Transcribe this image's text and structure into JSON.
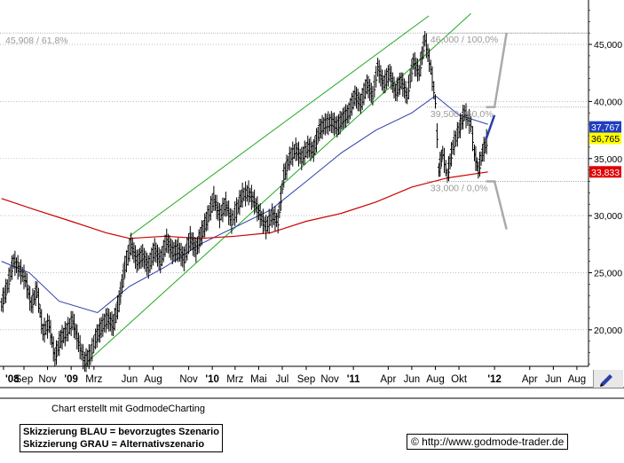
{
  "chart_data": {
    "type": "candlestick",
    "y_axis": {
      "ticks": [
        20000,
        25000,
        30000,
        35000,
        40000,
        45000
      ],
      "tick_labels": [
        "20,000",
        "25,000",
        "30,000",
        "35,000",
        "40,000",
        "45,000"
      ],
      "range": [
        16800,
        48500
      ],
      "position": "right"
    },
    "x_axis": {
      "tick_labels": [
        "'08",
        "Sep",
        "Nov",
        "'09",
        "Mrz",
        "Jun",
        "Aug",
        "Nov",
        "'10",
        "Mrz",
        "Mai",
        "Jul",
        "Sep",
        "Nov",
        "'11",
        "Apr",
        "Jun",
        "Aug",
        "Okt",
        "'12",
        "Apr",
        "Jun",
        "Aug"
      ],
      "bold_labels": [
        "'08",
        "'09",
        "'10",
        "'11",
        "'12"
      ],
      "range": [
        "2008-07-01",
        "2012-08-31"
      ]
    },
    "grid": "horizontal dotted",
    "price_series": [
      [
        "2008-07-05",
        22200
      ],
      [
        "2008-07-20",
        23800
      ],
      [
        "2008-08-05",
        26000
      ],
      [
        "2008-08-20",
        25300
      ],
      [
        "2008-09-05",
        24400
      ],
      [
        "2008-09-20",
        22200
      ],
      [
        "2008-10-05",
        23500
      ],
      [
        "2008-10-20",
        19800
      ],
      [
        "2008-11-05",
        20500
      ],
      [
        "2008-11-20",
        17600
      ],
      [
        "2008-12-05",
        19200
      ],
      [
        "2008-12-20",
        19800
      ],
      [
        "2009-01-05",
        20800
      ],
      [
        "2009-01-20",
        18900
      ],
      [
        "2009-02-05",
        17200
      ],
      [
        "2009-02-20",
        17800
      ],
      [
        "2009-03-05",
        19200
      ],
      [
        "2009-03-20",
        20200
      ],
      [
        "2009-04-05",
        21000
      ],
      [
        "2009-04-20",
        20400
      ],
      [
        "2009-05-05",
        22500
      ],
      [
        "2009-05-20",
        25500
      ],
      [
        "2009-06-05",
        27500
      ],
      [
        "2009-06-20",
        26000
      ],
      [
        "2009-07-05",
        26500
      ],
      [
        "2009-07-20",
        25500
      ],
      [
        "2009-08-05",
        27000
      ],
      [
        "2009-08-20",
        26000
      ],
      [
        "2009-09-05",
        27800
      ],
      [
        "2009-09-20",
        26800
      ],
      [
        "2009-10-05",
        27000
      ],
      [
        "2009-10-20",
        26200
      ],
      [
        "2009-11-05",
        28000
      ],
      [
        "2009-11-20",
        27000
      ],
      [
        "2009-12-05",
        28500
      ],
      [
        "2009-12-20",
        29800
      ],
      [
        "2010-01-05",
        31500
      ],
      [
        "2010-01-20",
        30000
      ],
      [
        "2010-02-05",
        31000
      ],
      [
        "2010-02-20",
        29500
      ],
      [
        "2010-03-05",
        30500
      ],
      [
        "2010-03-20",
        31800
      ],
      [
        "2010-04-05",
        32000
      ],
      [
        "2010-04-20",
        31200
      ],
      [
        "2010-05-05",
        30000
      ],
      [
        "2010-05-20",
        29000
      ],
      [
        "2010-06-05",
        30000
      ],
      [
        "2010-06-20",
        29500
      ],
      [
        "2010-07-05",
        33500
      ],
      [
        "2010-07-20",
        35000
      ],
      [
        "2010-08-05",
        35800
      ],
      [
        "2010-08-20",
        35000
      ],
      [
        "2010-09-05",
        36000
      ],
      [
        "2010-09-20",
        35700
      ],
      [
        "2010-10-05",
        37500
      ],
      [
        "2010-10-20",
        38000
      ],
      [
        "2010-11-05",
        38200
      ],
      [
        "2010-11-20",
        37800
      ],
      [
        "2010-12-05",
        38500
      ],
      [
        "2010-12-20",
        39000
      ],
      [
        "2011-01-05",
        40500
      ],
      [
        "2011-01-20",
        39800
      ],
      [
        "2011-02-05",
        41500
      ],
      [
        "2011-02-20",
        40500
      ],
      [
        "2011-03-05",
        43000
      ],
      [
        "2011-03-20",
        41500
      ],
      [
        "2011-04-05",
        42500
      ],
      [
        "2011-04-20",
        40800
      ],
      [
        "2011-05-05",
        41800
      ],
      [
        "2011-05-20",
        40500
      ],
      [
        "2011-06-05",
        43500
      ],
      [
        "2011-06-20",
        42500
      ],
      [
        "2011-07-05",
        45500
      ],
      [
        "2011-07-20",
        43000
      ],
      [
        "2011-08-01",
        40000
      ],
      [
        "2011-08-10",
        34000
      ],
      [
        "2011-08-20",
        35500
      ],
      [
        "2011-09-01",
        33500
      ],
      [
        "2011-09-15",
        36000
      ],
      [
        "2011-10-01",
        37500
      ],
      [
        "2011-10-15",
        39000
      ],
      [
        "2011-11-01",
        38000
      ],
      [
        "2011-11-10",
        35500
      ],
      [
        "2011-11-20",
        34000
      ],
      [
        "2011-12-01",
        35500
      ],
      [
        "2011-12-15",
        36800
      ]
    ],
    "moving_average_blue": [
      [
        "2008-07-05",
        26000
      ],
      [
        "2008-09-15",
        25000
      ],
      [
        "2008-12-01",
        22500
      ],
      [
        "2009-03-10",
        21500
      ],
      [
        "2009-06-01",
        23800
      ],
      [
        "2009-09-01",
        25500
      ],
      [
        "2009-12-01",
        27500
      ],
      [
        "2010-03-01",
        29000
      ],
      [
        "2010-06-01",
        30500
      ],
      [
        "2010-09-01",
        33000
      ],
      [
        "2010-12-01",
        35500
      ],
      [
        "2011-03-01",
        37500
      ],
      [
        "2011-06-01",
        39000
      ],
      [
        "2011-08-01",
        40500
      ],
      [
        "2011-10-01",
        38800
      ],
      [
        "2011-12-15",
        38000
      ]
    ],
    "moving_average_red": [
      [
        "2008-07-05",
        31500
      ],
      [
        "2008-10-01",
        30500
      ],
      [
        "2009-01-01",
        29500
      ],
      [
        "2009-04-01",
        28500
      ],
      [
        "2009-06-01",
        28000
      ],
      [
        "2009-09-01",
        28200
      ],
      [
        "2009-12-01",
        28000
      ],
      [
        "2010-03-01",
        28200
      ],
      [
        "2010-06-01",
        28500
      ],
      [
        "2010-09-01",
        29500
      ],
      [
        "2010-12-01",
        30200
      ],
      [
        "2011-03-01",
        31200
      ],
      [
        "2011-06-01",
        32500
      ],
      [
        "2011-09-01",
        33300
      ],
      [
        "2011-12-15",
        33833
      ]
    ],
    "trend_channel_lines": [
      {
        "from": [
          "2009-06-01",
          28200
        ],
        "to": [
          "2011-07-15",
          47500
        ]
      },
      {
        "from": [
          "2009-02-15",
          17300
        ],
        "to": [
          "2011-11-01",
          47700
        ]
      }
    ],
    "fibonacci_levels": [
      {
        "label": "46,000 / 100,0%",
        "value": 46000
      },
      {
        "label": "39,500 / 50,0%",
        "value": 39500
      },
      {
        "label": "33,000 / 0,0%",
        "value": 33000
      }
    ],
    "left_level_label": "45,908 / 61,8%",
    "scenario_blue": [
      [
        "2011-12-10",
        36700
      ],
      [
        "2012-01-01",
        38800
      ]
    ],
    "scenario_gray": [
      [
        [
          "2011-12-10",
          39500
        ],
        [
          "2012-01-01",
          39500
        ],
        [
          "2012-02-01",
          46000
        ]
      ],
      [
        [
          "2011-12-10",
          33000
        ],
        [
          "2012-01-01",
          33000
        ],
        [
          "2012-02-01",
          28800
        ]
      ]
    ],
    "price_tags": [
      {
        "label": "37,767",
        "value": 37767,
        "color": "#1f3fbf"
      },
      {
        "label": "36,765",
        "value": 36765,
        "color": "#ffff00"
      },
      {
        "label": "33,833",
        "value": 33833,
        "color": "#e00000"
      }
    ]
  },
  "credit": "Chart erstellt mit GodmodeCharting",
  "legend": {
    "line1": "Skizzierung BLAU = bevorzugtes Szenario",
    "line2": "Skizzierung GRAU = Alternativszenario"
  },
  "copyright": "© http://www.godmode-trader.de",
  "colors": {
    "moving_average_blue": "#2a3fa8",
    "moving_average_red": "#cc0000",
    "channel": "#22aa22",
    "scenario_blue": "#2a3fa8",
    "scenario_gray": "#aaaaaa",
    "grid": "#999999"
  },
  "icons": {
    "toolbar": "pencil-icon"
  }
}
